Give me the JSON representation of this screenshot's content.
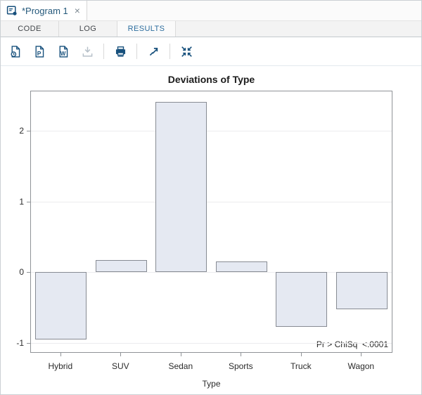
{
  "doc_tabs": {
    "active": {
      "icon": "program-icon",
      "title": "*Program 1",
      "close": "×"
    }
  },
  "nav_tabs": [
    {
      "label": "CODE",
      "active": false
    },
    {
      "label": "LOG",
      "active": false
    },
    {
      "label": "RESULTS",
      "active": true
    }
  ],
  "toolbar": {
    "icons": [
      {
        "name": "download-html-icon",
        "disabled": false
      },
      {
        "name": "download-pdf-icon",
        "disabled": false
      },
      {
        "name": "download-rtf-icon",
        "disabled": false
      },
      {
        "name": "download-icon",
        "disabled": true
      },
      {
        "name": "print-icon",
        "disabled": false
      },
      {
        "name": "open-new-tab-icon",
        "disabled": false
      },
      {
        "name": "exit-fullscreen-icon",
        "disabled": false
      }
    ]
  },
  "chart_data": {
    "type": "bar",
    "title": "Deviations of Type",
    "xlabel": "Type",
    "ylabel": "",
    "categories": [
      "Hybrid",
      "SUV",
      "Sedan",
      "Sports",
      "Truck",
      "Wagon"
    ],
    "values": [
      -0.95,
      0.17,
      2.41,
      0.15,
      -0.77,
      -0.52
    ],
    "yticks": [
      2,
      1,
      0,
      -1
    ],
    "ylim": [
      -1.13,
      2.56
    ],
    "grid": true,
    "legend_position": "none",
    "annotation": "Pr > ChiSq  <.0001",
    "bar_fill": "#e5e9f2",
    "bar_stroke": "#878b93"
  },
  "colors": {
    "accent_blue": "#2d6d9e",
    "icon_blue": "#17507c",
    "tab_text_blue": "#25597b"
  }
}
